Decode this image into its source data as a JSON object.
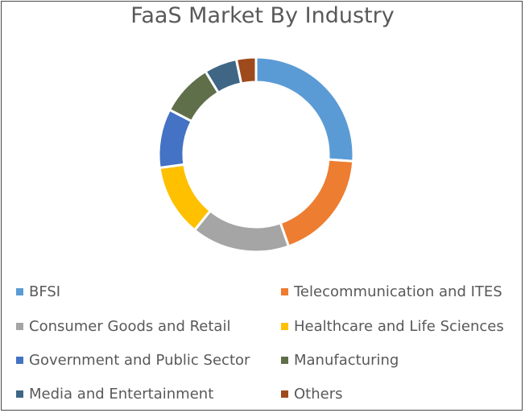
{
  "chart_data": {
    "type": "donut",
    "title": "FaaS Market By Industry",
    "categories": [
      "BFSI",
      "Telecommunication and ITES",
      "Consumer Goods and Retail",
      "Healthcare and Life Sciences",
      "Government and Public Sector",
      "Manufacturing",
      "Media and Entertainment",
      "Others"
    ],
    "values": [
      24,
      17,
      15,
      11,
      9,
      8,
      5,
      3
    ],
    "colors": [
      "#5b9bd5",
      "#ed7d31",
      "#a5a5a5",
      "#ffc000",
      "#4472c4",
      "#5f6f4a",
      "#3f6685",
      "#9e4a1c"
    ],
    "legend_position": "bottom"
  }
}
